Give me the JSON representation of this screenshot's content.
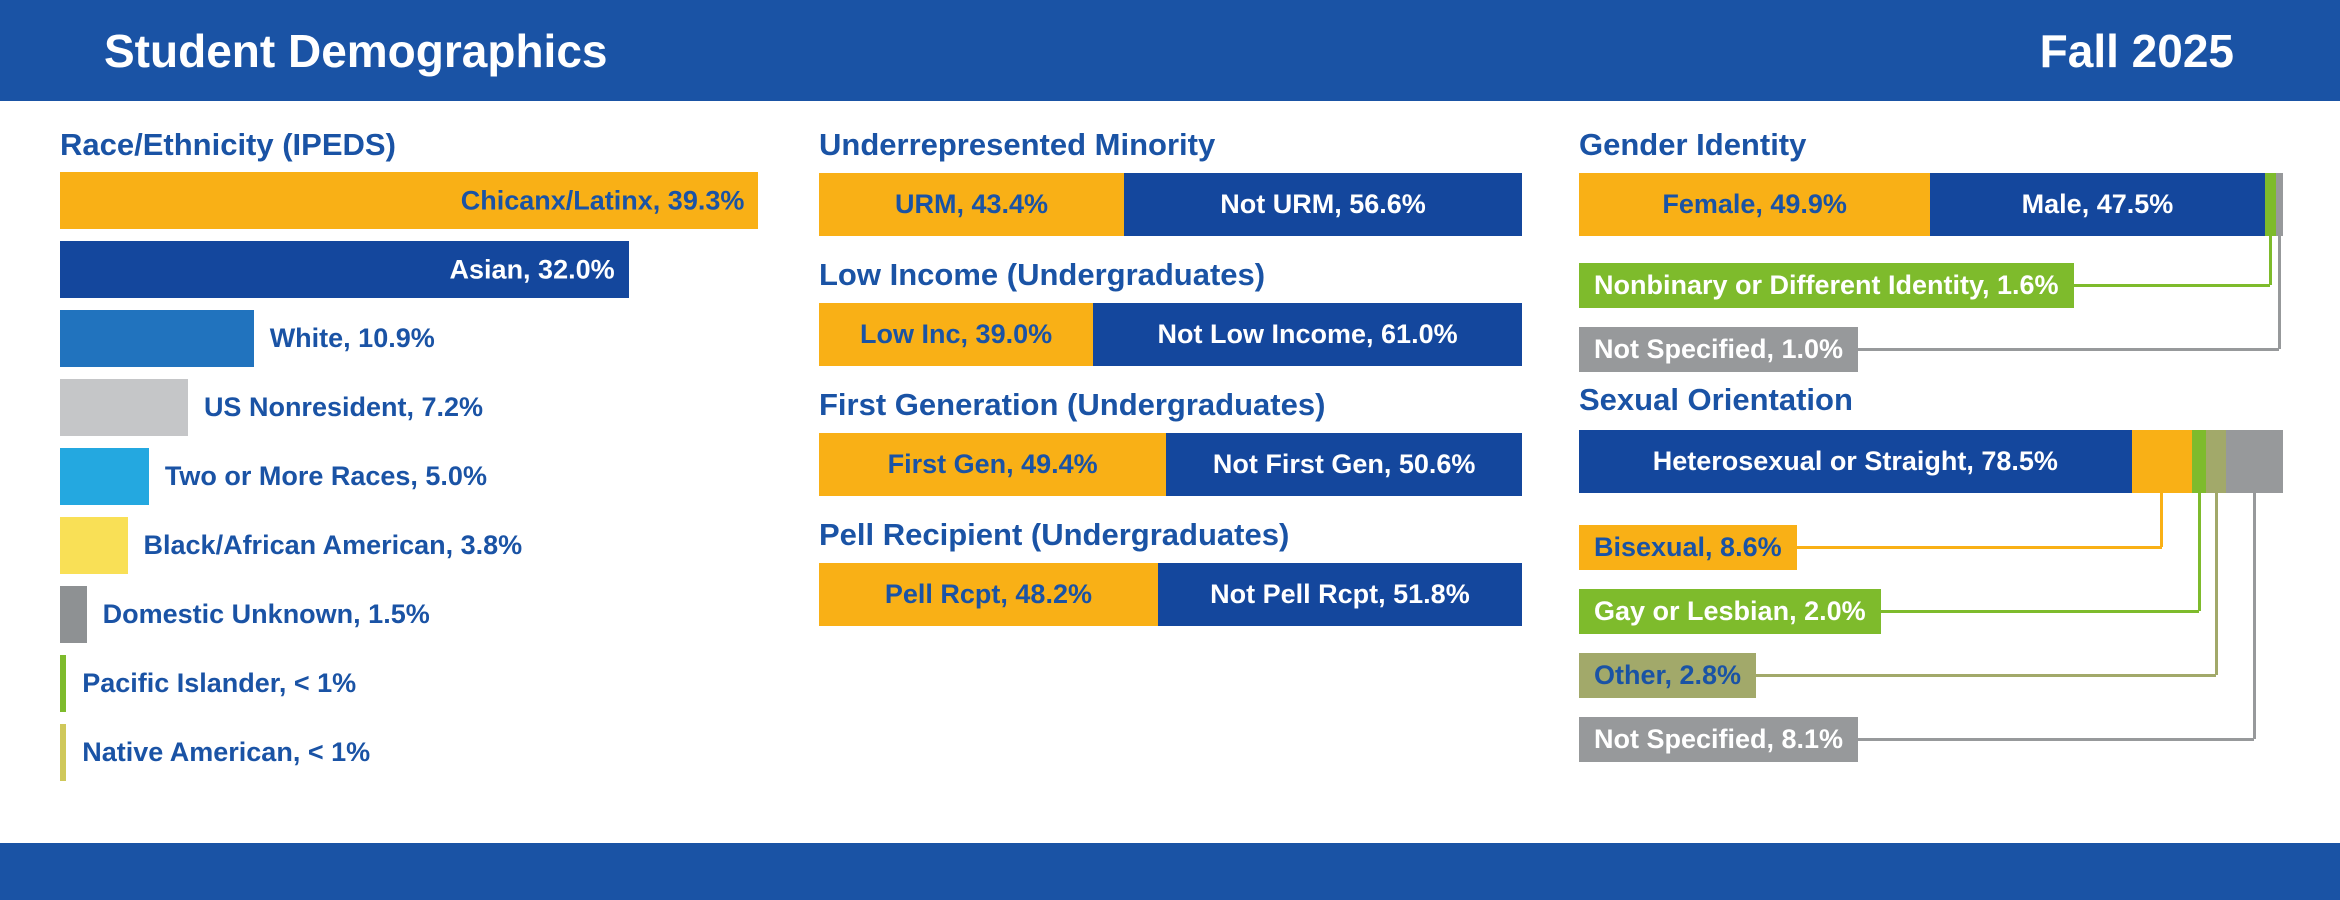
{
  "header": {
    "title": "Student Demographics",
    "term": "Fall 2025"
  },
  "colors": {
    "header_blue": "#1A53A5",
    "bar_blue": "#14479D",
    "text_blue": "#1A53A5",
    "orange": "#F9B016",
    "mid_blue": "#2173BE",
    "light_gray": "#C5C6C8",
    "cyan": "#24A8E0",
    "yellow": "#F9E056",
    "mid_gray": "#8E9193",
    "green": "#7EBB2C",
    "olive": "#A2A96A",
    "callout_gray": "#97999B",
    "native_line": "#CFC85A",
    "white": "#FFFFFF"
  },
  "chart_data": [
    {
      "id": "race_ethnicity",
      "type": "bar",
      "stacked": false,
      "orientation": "horizontal",
      "title": "Race/Ethnicity (IPEDS)",
      "value_format": "percent",
      "bars": [
        {
          "label": "Chicanx/Latinx, 39.3%",
          "value": 39.3,
          "color_key": "orange",
          "label_inside": true,
          "label_color": "text_blue"
        },
        {
          "label": "Asian, 32.0%",
          "value": 32.0,
          "color_key": "bar_blue",
          "label_inside": true,
          "label_color": "white"
        },
        {
          "label": "White, 10.9%",
          "value": 10.9,
          "color_key": "mid_blue",
          "label_inside": false,
          "label_color": "text_blue"
        },
        {
          "label": "US Nonresident, 7.2%",
          "value": 7.2,
          "color_key": "light_gray",
          "label_inside": false,
          "label_color": "text_blue"
        },
        {
          "label": "Two or More Races, 5.0%",
          "value": 5.0,
          "color_key": "cyan",
          "label_inside": false,
          "label_color": "text_blue"
        },
        {
          "label": "Black/African American, 3.8%",
          "value": 3.8,
          "color_key": "yellow",
          "label_inside": false,
          "label_color": "text_blue"
        },
        {
          "label": "Domestic Unknown, 1.5%",
          "value": 1.5,
          "color_key": "mid_gray",
          "label_inside": false,
          "label_color": "text_blue"
        },
        {
          "label": "Pacific Islander, < 1%",
          "value": 0.35,
          "value_label": "< 1%",
          "color_key": "green",
          "label_inside": false,
          "label_color": "text_blue"
        },
        {
          "label": "Native American, < 1%",
          "value": 0.35,
          "value_label": "< 1%",
          "color_key": "native_line",
          "label_inside": false,
          "label_color": "text_blue"
        }
      ]
    },
    {
      "id": "urm",
      "type": "bar",
      "stacked": true,
      "title": "Underrepresented Minority",
      "value_format": "percent",
      "segments": [
        {
          "label": "URM, 43.4%",
          "value": 43.4,
          "color_key": "orange",
          "text_color": "text_blue",
          "inside": true
        },
        {
          "label": "Not URM, 56.6%",
          "value": 56.6,
          "color_key": "bar_blue",
          "text_color": "white",
          "inside": true
        }
      ]
    },
    {
      "id": "low_income",
      "type": "bar",
      "stacked": true,
      "title": "Low Income (Undergraduates)",
      "value_format": "percent",
      "segments": [
        {
          "label": "Low Inc, 39.0%",
          "value": 39.0,
          "color_key": "orange",
          "text_color": "text_blue",
          "inside": true
        },
        {
          "label": "Not Low Income, 61.0%",
          "value": 61.0,
          "color_key": "bar_blue",
          "text_color": "white",
          "inside": true
        }
      ]
    },
    {
      "id": "first_gen",
      "type": "bar",
      "stacked": true,
      "title": "First Generation (Undergraduates)",
      "value_format": "percent",
      "segments": [
        {
          "label": "First Gen, 49.4%",
          "value": 49.4,
          "color_key": "orange",
          "text_color": "text_blue",
          "inside": true
        },
        {
          "label": "Not First Gen, 50.6%",
          "value": 50.6,
          "color_key": "bar_blue",
          "text_color": "white",
          "inside": true
        }
      ]
    },
    {
      "id": "pell",
      "type": "bar",
      "stacked": true,
      "title": "Pell Recipient (Undergraduates)",
      "value_format": "percent",
      "segments": [
        {
          "label": "Pell Rcpt, 48.2%",
          "value": 48.2,
          "color_key": "orange",
          "text_color": "text_blue",
          "inside": true
        },
        {
          "label": "Not Pell Rcpt, 51.8%",
          "value": 51.8,
          "color_key": "bar_blue",
          "text_color": "white",
          "inside": true
        }
      ]
    },
    {
      "id": "gender",
      "type": "bar",
      "stacked": true,
      "title": "Gender Identity",
      "value_format": "percent",
      "segments": [
        {
          "label": "Female, 49.9%",
          "value": 49.9,
          "color_key": "orange",
          "text_color": "text_blue",
          "inside": true
        },
        {
          "label": "Male, 47.5%",
          "value": 47.5,
          "color_key": "bar_blue",
          "text_color": "white",
          "inside": true
        },
        {
          "label": "Nonbinary or Different Identity, 1.6%",
          "value": 1.6,
          "color_key": "green",
          "text_color": "white",
          "inside": false
        },
        {
          "label": "Not Specified, 1.0%",
          "value": 1.0,
          "color_key": "callout_gray",
          "text_color": "white",
          "inside": false
        }
      ]
    },
    {
      "id": "orientation",
      "type": "bar",
      "stacked": true,
      "title": "Sexual Orientation",
      "value_format": "percent",
      "segments": [
        {
          "label": "Heterosexual or Straight, 78.5%",
          "value": 78.5,
          "color_key": "bar_blue",
          "text_color": "white",
          "inside": true
        },
        {
          "label": "Bisexual, 8.6%",
          "value": 8.6,
          "color_key": "orange",
          "text_color": "text_blue",
          "inside": false
        },
        {
          "label": "Gay or Lesbian, 2.0%",
          "value": 2.0,
          "color_key": "green",
          "text_color": "white",
          "inside": false
        },
        {
          "label": "Other, 2.8%",
          "value": 2.8,
          "color_key": "olive",
          "text_color": "text_blue",
          "inside": false
        },
        {
          "label": "Not Specified, 8.1%",
          "value": 8.1,
          "color_key": "callout_gray",
          "text_color": "white",
          "inside": false
        }
      ]
    }
  ]
}
